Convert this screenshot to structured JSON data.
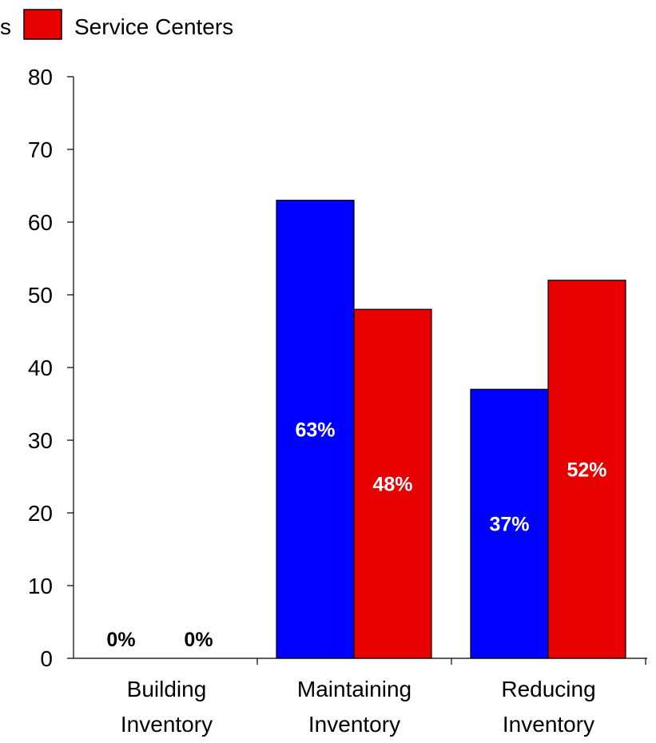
{
  "chart_data": {
    "type": "bar",
    "categories": [
      [
        "Building",
        "Inventory"
      ],
      [
        "Maintaining",
        "Inventory"
      ],
      [
        "Reducing",
        "Inventory"
      ]
    ],
    "series": [
      {
        "name": "",
        "color": "#0000ff",
        "values": [
          0,
          63,
          37
        ],
        "labels": [
          "0%",
          "63%",
          "37%"
        ],
        "label_color_on_bar": "#ffffff"
      },
      {
        "name": "Service Centers",
        "color": "#e60000",
        "values": [
          0,
          48,
          52
        ],
        "labels": [
          "0%",
          "48%",
          "52%"
        ],
        "label_color_on_bar": "#ffffff"
      }
    ],
    "legend": {
      "visible_text": [
        "s",
        "Service Centers"
      ],
      "placement": "top"
    },
    "yticks": [
      0,
      10,
      20,
      30,
      40,
      50,
      60,
      70,
      80
    ],
    "ylim": [
      0,
      80
    ],
    "grid": false,
    "zero_label_color": "#000000"
  }
}
